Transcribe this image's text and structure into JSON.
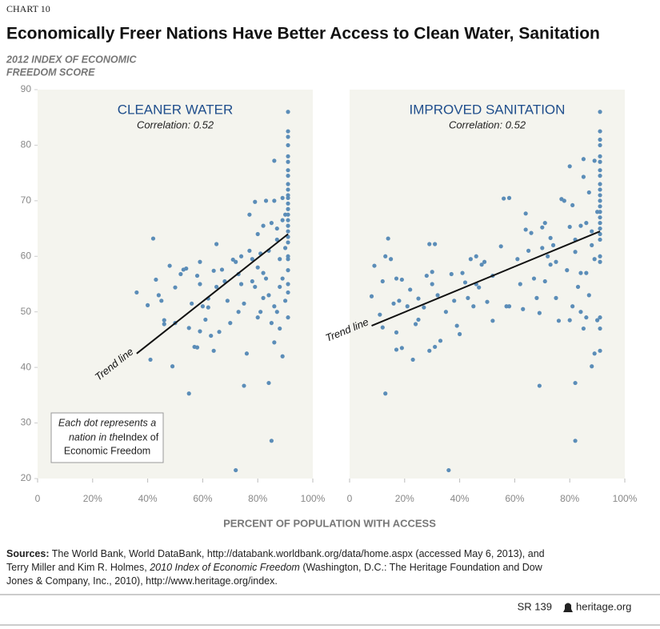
{
  "header": {
    "chart_label": "CHART 10",
    "title": "Economically Freer Nations Have Better Access to Clean Water, Sanitation"
  },
  "y_axis_label": [
    "2012 INDEX OF ECONOMIC",
    "FREEDOM SCORE"
  ],
  "x_axis_label": "PERCENT OF POPULATION WITH ACCESS",
  "chart_data": [
    {
      "type": "scatter",
      "title": "CLEANER WATER",
      "subtitle": "Correlation: 0.52",
      "color": "#5b8db8",
      "xlim": [
        0,
        100
      ],
      "ylim": [
        20,
        90
      ],
      "xticks": [
        0,
        {
          "value": 20,
          "label": "20%"
        },
        {
          "value": 40,
          "label": "40%"
        },
        {
          "value": 60,
          "label": "60%"
        },
        {
          "value": 80,
          "label": "80%"
        },
        {
          "value": 100,
          "label": "100%"
        }
      ],
      "yticks": [
        20,
        30,
        40,
        50,
        60,
        70,
        80,
        90
      ],
      "x": [
        36,
        40,
        41,
        42,
        43,
        44,
        45,
        46,
        46,
        48,
        49,
        50,
        50,
        52,
        53,
        54,
        55,
        55,
        56,
        57,
        58,
        58,
        59,
        59,
        59,
        60,
        61,
        62,
        62,
        63,
        64,
        64,
        65,
        65,
        66,
        67,
        68,
        69,
        70,
        71,
        72,
        72,
        73,
        73,
        74,
        74,
        75,
        75,
        76,
        77,
        77,
        78,
        78,
        79,
        79,
        80,
        80,
        80,
        81,
        81,
        82,
        82,
        82,
        83,
        83,
        84,
        84,
        84,
        85,
        85,
        85,
        86,
        86,
        86,
        86,
        87,
        87,
        87,
        88,
        88,
        88,
        89,
        89,
        89,
        89,
        90,
        90,
        90,
        91,
        91,
        91,
        91,
        91,
        91,
        91,
        91,
        91,
        91,
        91,
        91,
        91,
        91,
        91,
        91,
        91,
        91,
        91,
        91,
        91,
        91,
        91,
        91,
        91,
        91
      ],
      "values": [
        53.5,
        51.2,
        41.4,
        63.2,
        55.8,
        53,
        52,
        48.5,
        47.8,
        58.3,
        40.2,
        54.4,
        48,
        56.8,
        57.6,
        57.8,
        35.3,
        47.1,
        51.5,
        43.7,
        43.6,
        56.5,
        59,
        55,
        46.5,
        51,
        48.6,
        52.4,
        50.8,
        45.7,
        43,
        57.4,
        62.2,
        54.5,
        46.4,
        57.6,
        55.5,
        52,
        48,
        59.4,
        21.5,
        59,
        56.8,
        50,
        55,
        60,
        36.7,
        51.5,
        42.5,
        67.5,
        61,
        59.5,
        55.5,
        69.8,
        54.5,
        64,
        49,
        58,
        60.5,
        50,
        65.5,
        52.5,
        57,
        70,
        56,
        53,
        37.2,
        61,
        66,
        26.8,
        48,
        77.2,
        70,
        44.5,
        51,
        65,
        63,
        50,
        59.5,
        54.5,
        47,
        70.5,
        66.5,
        42,
        56,
        67.5,
        61.5,
        52,
        86,
        82.5,
        81.5,
        80,
        78,
        77,
        75.5,
        74.5,
        73,
        72,
        71,
        70.5,
        69.5,
        68.5,
        67.5,
        66.5,
        65.5,
        64.5,
        63.5,
        62.5,
        60,
        59.5,
        57.5,
        55,
        53.5,
        49
      ],
      "trend_line": {
        "label": "Trend line",
        "x": [
          36,
          91
        ],
        "y": [
          42.5,
          64
        ]
      },
      "annotation": [
        "Each dot represents a",
        "nation in the",
        "Index of",
        "Economic Freedom"
      ]
    },
    {
      "type": "scatter",
      "title": "IMPROVED SANITATION",
      "subtitle": "Correlation: 0.52",
      "color": "#5b8db8",
      "xlim": [
        0,
        100
      ],
      "ylim": [
        20,
        90
      ],
      "xticks": [
        0,
        {
          "value": 20,
          "label": "20%"
        },
        {
          "value": 40,
          "label": "40%"
        },
        {
          "value": 60,
          "label": "60%"
        },
        {
          "value": 80,
          "label": "80%"
        },
        {
          "value": 100,
          "label": "100%"
        }
      ],
      "x": [
        8,
        9,
        11,
        12,
        12,
        13,
        13,
        14,
        15,
        16,
        17,
        17,
        17,
        18,
        19,
        19,
        21,
        22,
        23,
        24,
        25,
        25,
        27,
        28,
        29,
        29,
        30,
        30,
        31,
        31,
        32,
        33,
        35,
        36,
        37,
        38,
        39,
        40,
        41,
        42,
        43,
        44,
        45,
        46,
        46,
        47,
        48,
        49,
        50,
        52,
        52,
        55,
        56,
        57,
        58,
        58,
        61,
        62,
        63,
        64,
        64,
        65,
        66,
        67,
        68,
        69,
        69,
        70,
        70,
        71,
        71,
        72,
        73,
        73,
        74,
        75,
        75,
        76,
        77,
        78,
        79,
        80,
        80,
        80,
        81,
        81,
        82,
        82,
        82,
        82,
        83,
        84,
        84,
        84,
        85,
        85,
        85,
        86,
        86,
        86,
        87,
        87,
        88,
        88,
        88,
        89,
        89,
        89,
        90,
        90,
        91,
        91,
        91,
        91,
        91,
        91,
        91,
        91,
        91,
        91,
        91,
        91,
        91,
        91,
        91,
        91,
        91,
        91,
        91,
        91,
        91,
        91,
        91,
        91
      ],
      "values": [
        52.8,
        58.3,
        49.5,
        47.2,
        55.5,
        35.3,
        60,
        63.2,
        59.5,
        51.5,
        56,
        46.3,
        43.2,
        52,
        43.5,
        55.8,
        51,
        54,
        41.4,
        47.8,
        48.6,
        52.4,
        50.8,
        56.5,
        62.2,
        43,
        55,
        57.2,
        62.2,
        43.7,
        53,
        44.8,
        50,
        21.5,
        56.8,
        52,
        47.5,
        46,
        57,
        55.3,
        52.5,
        59.5,
        51,
        55,
        60,
        54.4,
        58.5,
        59,
        51.8,
        56.5,
        48.4,
        61.8,
        70.4,
        51,
        70.5,
        51,
        59.5,
        55,
        50.5,
        64.8,
        67.7,
        61,
        64.2,
        56,
        52.5,
        36.7,
        49.8,
        65.2,
        61.5,
        66,
        55.5,
        60,
        63.3,
        58.5,
        62,
        59,
        52.5,
        48.4,
        70.3,
        70,
        57.5,
        65.3,
        76.2,
        48.5,
        69.2,
        51,
        63,
        37.2,
        26.8,
        60.8,
        54.5,
        65.5,
        57,
        50,
        77.5,
        74.3,
        47,
        66,
        57,
        49,
        71.5,
        53,
        64.5,
        40.2,
        62,
        77.2,
        42.5,
        59.5,
        68,
        48.5,
        86,
        82.5,
        81,
        80,
        78,
        77,
        75.5,
        74.5,
        73,
        72,
        71,
        70,
        69,
        68,
        67,
        66,
        65,
        64,
        63,
        60,
        59,
        49,
        47,
        43
      ],
      "trend_line": {
        "label": "Trend line",
        "x": [
          8,
          91
        ],
        "y": [
          47.5,
          64.5
        ]
      }
    }
  ],
  "sources": {
    "label": "Sources:",
    "text": "The World Bank, World DataBank, http://databank.worldbank.org/data/home.aspx (accessed May 6, 2013), and Terry Miller and Kim R. Holmes,",
    "italic": "2010 Index of Economic Freedom",
    "text_end": "(Washington, D.C.: The Heritage Foundation and Dow Jones & Company, Inc., 2010), http://www.heritage.org/index."
  },
  "footer": {
    "report": "SR 139",
    "site": "heritage.org"
  }
}
